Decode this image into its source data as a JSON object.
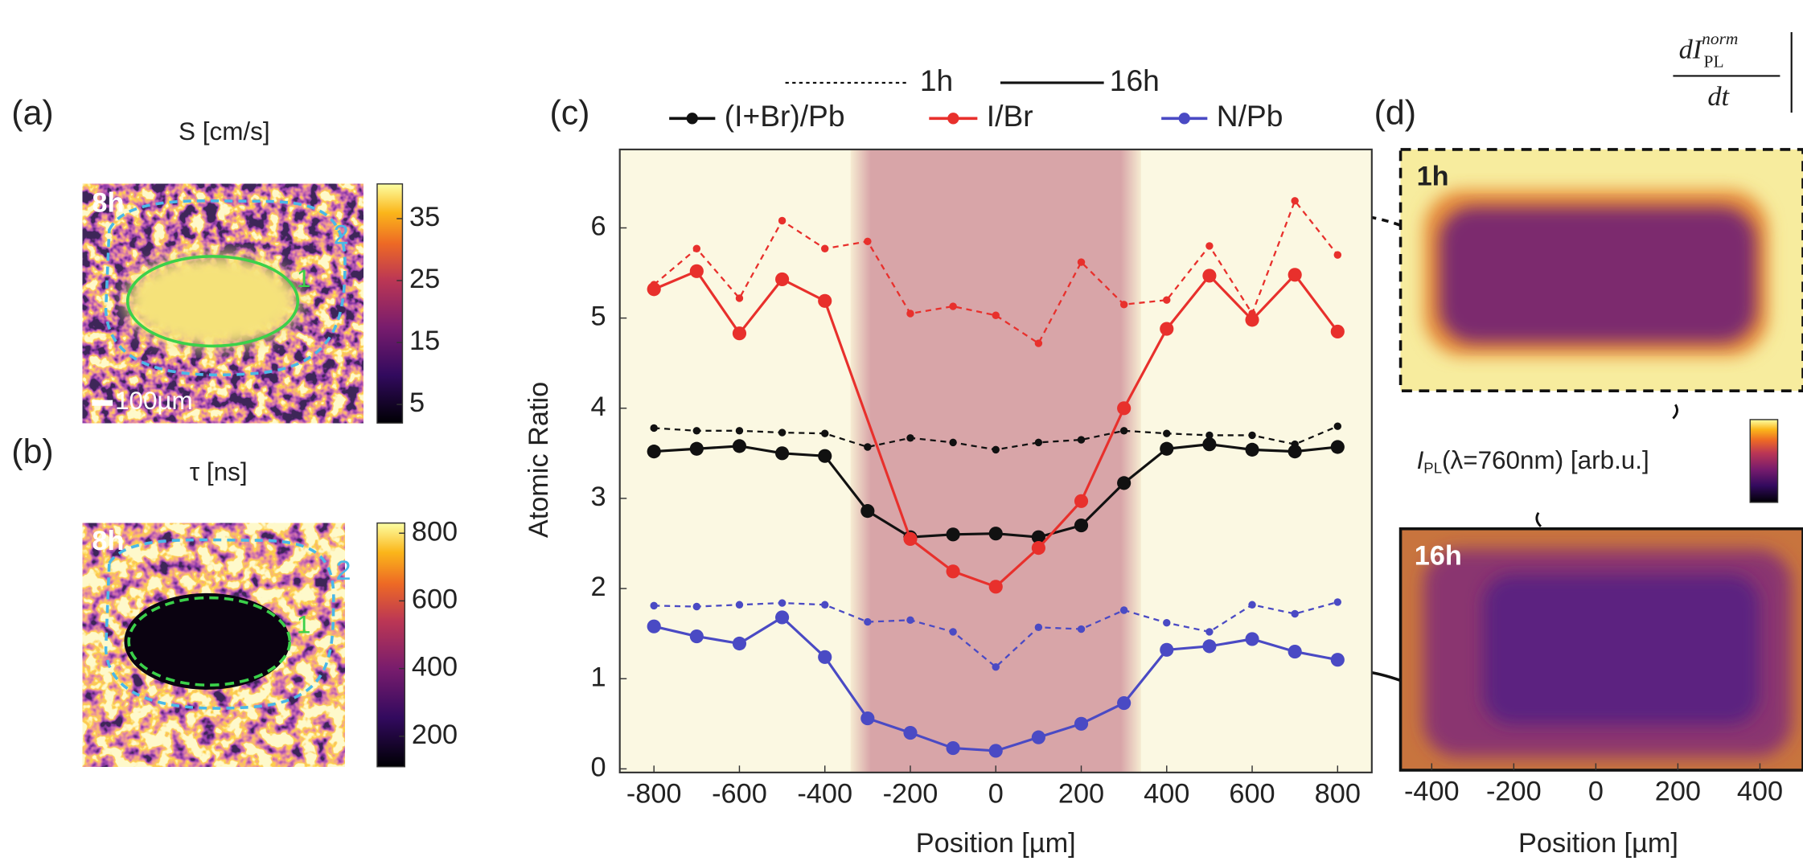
{
  "chart_data": [
    {
      "type": "heatmap",
      "label": "(a)",
      "title": "S [cm/s]",
      "time_label": "8h",
      "region_labels": [
        "1",
        "2"
      ],
      "scale_bar": "100µm",
      "colorbar": {
        "lim": [
          2,
          40.6
        ],
        "ticks": [
          5,
          15,
          25,
          35
        ]
      }
    },
    {
      "type": "heatmap",
      "label": "(b)",
      "title": "τ [ns]",
      "time_label": "8h",
      "region_labels": [
        "1",
        "2"
      ],
      "colorbar": {
        "lim": [
          110,
          830
        ],
        "ticks": [
          200,
          400,
          600,
          800
        ]
      }
    },
    {
      "type": "line",
      "label": "(c)",
      "styles": [
        "1h",
        "16h"
      ],
      "series": [
        {
          "name": "(I+Br)/Pb",
          "color": "#111111",
          "lines": [
            {
              "x": [
                -800,
                -700,
                -600,
                -500,
                -400,
                -300,
                -200,
                -100,
                0,
                100,
                200,
                300,
                400,
                500,
                600,
                700,
                800
              ],
              "values": [
                3.78,
                3.75,
                3.75,
                3.73,
                3.72,
                3.57,
                3.67,
                3.62,
                3.54,
                3.62,
                3.65,
                3.75,
                3.72,
                3.7,
                3.7,
                3.6,
                3.8
              ]
            },
            {
              "x": [
                -800,
                -700,
                -600,
                -500,
                -400,
                -300,
                -200,
                -100,
                0,
                100,
                200,
                300,
                400,
                500,
                600,
                700,
                800
              ],
              "values": [
                3.52,
                3.55,
                3.58,
                3.5,
                3.47,
                2.86,
                2.57,
                2.6,
                2.61,
                2.57,
                2.7,
                3.17,
                3.55,
                3.6,
                3.54,
                3.52,
                3.57
              ]
            }
          ]
        },
        {
          "name": "I/Br",
          "color": "#e8302c",
          "lines": [
            {
              "x": [
                -800,
                -700,
                -600,
                -500,
                -400,
                -300,
                -200,
                -100,
                0,
                100,
                200,
                300,
                400,
                500,
                600,
                700,
                800
              ],
              "values": [
                5.37,
                5.77,
                5.22,
                6.08,
                5.77,
                5.85,
                5.05,
                5.13,
                5.03,
                4.72,
                5.62,
                5.15,
                5.2,
                5.8,
                5.05,
                6.3,
                5.7
              ]
            },
            {
              "x": [
                -800,
                -700,
                -600,
                -500,
                -400,
                -200,
                -100,
                0,
                100,
                200,
                300,
                400,
                500,
                600,
                700,
                800
              ],
              "values": [
                5.32,
                5.52,
                4.83,
                5.43,
                5.19,
                2.55,
                2.19,
                2.02,
                2.45,
                2.97,
                4.0,
                4.88,
                5.47,
                4.98,
                5.48,
                4.85
              ]
            }
          ]
        },
        {
          "name": "N/Pb",
          "color": "#4a4ac4",
          "lines": [
            {
              "x": [
                -800,
                -700,
                -600,
                -500,
                -400,
                -300,
                -200,
                -100,
                0,
                100,
                200,
                300,
                400,
                500,
                600,
                700,
                800
              ],
              "values": [
                1.81,
                1.8,
                1.82,
                1.84,
                1.82,
                1.63,
                1.65,
                1.52,
                1.13,
                1.57,
                1.55,
                1.76,
                1.62,
                1.52,
                1.82,
                1.72,
                1.85
              ]
            },
            {
              "x": [
                -800,
                -700,
                -600,
                -500,
                -400,
                -300,
                -200,
                -100,
                0,
                100,
                200,
                300,
                400,
                500,
                600,
                700,
                800
              ],
              "values": [
                1.58,
                1.47,
                1.39,
                1.68,
                1.24,
                0.56,
                0.4,
                0.23,
                0.2,
                0.35,
                0.5,
                0.73,
                1.32,
                1.36,
                1.44,
                1.3,
                1.21
              ]
            }
          ]
        }
      ],
      "xlim": [
        -880,
        880
      ],
      "xticks": [
        -800,
        -600,
        -400,
        -200,
        0,
        200,
        400,
        600,
        800
      ],
      "ylim": [
        -0.04,
        6.87
      ],
      "yticks": [
        0,
        1,
        2,
        3,
        4,
        5,
        6
      ],
      "xlabel": "Position [µm]",
      "ylabel": "Atomic Ratio",
      "highlight": [
        -340,
        340
      ]
    },
    {
      "type": "image",
      "label": "(d)",
      "panels": [
        "1h",
        "16h"
      ],
      "colorbar_label": {
        "symbol": "I",
        "subscript": "PL",
        "text": "(λ=760nm) [arb.u.]"
      },
      "xlim": [
        -476,
        505
      ],
      "xticks": [
        -400,
        -200,
        0,
        200,
        400
      ],
      "xlabel": "Position [µm]"
    }
  ],
  "header_formula": {
    "numerator": "dI",
    "superscript": "norm",
    "subscript": "PL",
    "denominator": "dt"
  }
}
